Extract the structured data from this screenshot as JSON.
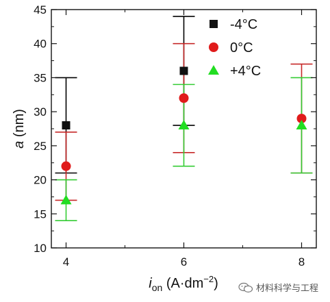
{
  "chart_data": {
    "type": "scatter",
    "xlabel": {
      "main": "i",
      "sub": "on",
      "unit": " (A·dm",
      "sup": "−2",
      "close": ")"
    },
    "ylabel": {
      "var": "a",
      "unit": " (nm)"
    },
    "xlim": [
      3.75,
      8.25
    ],
    "ylim": [
      10,
      45
    ],
    "xticks": [
      4,
      6,
      8
    ],
    "yticks": [
      10,
      15,
      20,
      25,
      30,
      35,
      40,
      45
    ],
    "grid": false,
    "legend_position": "top-right",
    "series": [
      {
        "name": "-4°C",
        "marker": "square",
        "color": "#111111",
        "errcolor": "#000000",
        "points": [
          {
            "x": 4,
            "y": 28,
            "ylo": 21,
            "yhi": 35
          },
          {
            "x": 6,
            "y": 36,
            "ylo": 28,
            "yhi": 44
          }
        ]
      },
      {
        "name": "0°C",
        "marker": "circle",
        "color": "#e01b1b",
        "errcolor": "#c62828",
        "points": [
          {
            "x": 4,
            "y": 22,
            "ylo": 17,
            "yhi": 27
          },
          {
            "x": 6,
            "y": 32,
            "ylo": 24,
            "yhi": 40
          },
          {
            "x": 8,
            "y": 29,
            "ylo": 21,
            "yhi": 37
          }
        ]
      },
      {
        "name": "+4°C",
        "marker": "triangle",
        "color": "#22dd22",
        "errcolor": "#33cc33",
        "points": [
          {
            "x": 4,
            "y": 17,
            "ylo": 14,
            "yhi": 20
          },
          {
            "x": 6,
            "y": 28,
            "ylo": 22,
            "yhi": 34
          },
          {
            "x": 8,
            "y": 28,
            "ylo": 21,
            "yhi": 35
          }
        ]
      }
    ]
  },
  "watermark": {
    "text": "材料科学与工程",
    "icon": "wechat-icon"
  }
}
